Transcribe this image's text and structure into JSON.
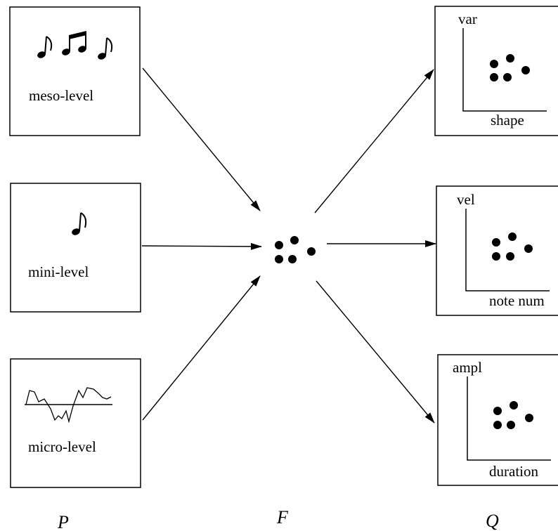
{
  "left_boxes": [
    {
      "id": "meso",
      "label": "meso-level",
      "icon": "three-eighth-notes-icon"
    },
    {
      "id": "mini",
      "label": "mini-level",
      "icon": "single-eighth-note-icon"
    },
    {
      "id": "micro",
      "label": "micro-level",
      "icon": "waveform-icon"
    }
  ],
  "right_boxes": [
    {
      "id": "q1",
      "axis_y": "var",
      "axis_x": "shape"
    },
    {
      "id": "q2",
      "axis_y": "vel",
      "axis_x": "note num"
    },
    {
      "id": "q3",
      "axis_y": "ampl",
      "axis_x": "duration"
    }
  ],
  "column_labels": {
    "left": "P",
    "middle": "F",
    "right": "Q"
  }
}
